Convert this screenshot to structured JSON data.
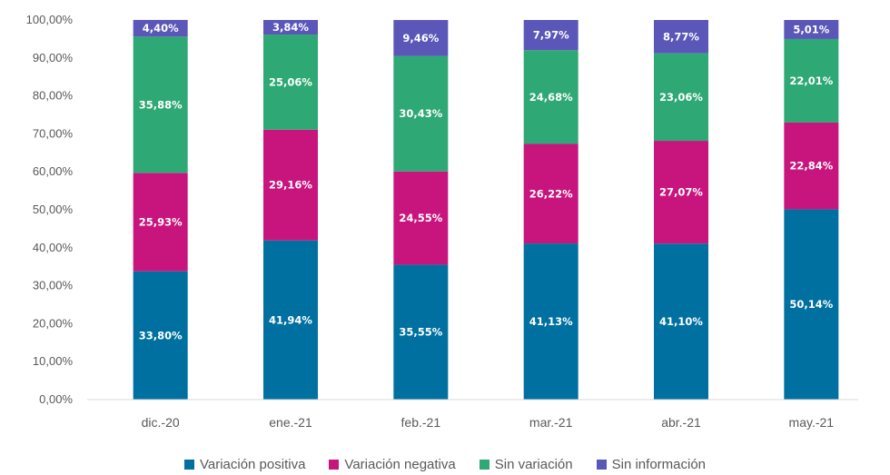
{
  "chart_data": {
    "type": "bar",
    "stacked": true,
    "percent_stacked": true,
    "categories": [
      "dic.-20",
      "ene.-21",
      "feb.-21",
      "mar.-21",
      "abr.-21",
      "may.-21"
    ],
    "series": [
      {
        "name": "Variación positiva",
        "color": "#0070A0",
        "values": [
          33.8,
          41.94,
          35.55,
          41.13,
          41.1,
          50.14
        ],
        "labels": [
          "33,80%",
          "41,94%",
          "35,55%",
          "41,13%",
          "41,10%",
          "50,14%"
        ]
      },
      {
        "name": "Variación negativa",
        "color": "#C8157E",
        "values": [
          25.93,
          29.16,
          24.55,
          26.22,
          27.07,
          22.84
        ],
        "labels": [
          "25,93%",
          "29,16%",
          "24,55%",
          "26,22%",
          "27,07%",
          "22,84%"
        ]
      },
      {
        "name": "Sin variación",
        "color": "#2EA874",
        "values": [
          35.88,
          25.06,
          30.43,
          24.68,
          23.06,
          22.01
        ],
        "labels": [
          "35,88%",
          "25,06%",
          "30,43%",
          "24,68%",
          "23,06%",
          "22,01%"
        ]
      },
      {
        "name": "Sin información",
        "color": "#5A57B8",
        "values": [
          4.4,
          3.84,
          9.46,
          7.97,
          8.77,
          5.01
        ],
        "labels": [
          "4,40%",
          "3,84%",
          "9,46%",
          "7,97%",
          "8,77%",
          "5,01%"
        ]
      }
    ],
    "title": "",
    "xlabel": "",
    "ylabel": "",
    "ylim": [
      0,
      100
    ],
    "yticks": [
      0,
      10,
      20,
      30,
      40,
      50,
      60,
      70,
      80,
      90,
      100
    ],
    "ytick_labels": [
      "0,00%",
      "10,00%",
      "20,00%",
      "30,00%",
      "40,00%",
      "50,00%",
      "60,00%",
      "70,00%",
      "80,00%",
      "90,00%",
      "100,00%"
    ],
    "grid": false,
    "legend_position": "bottom"
  }
}
